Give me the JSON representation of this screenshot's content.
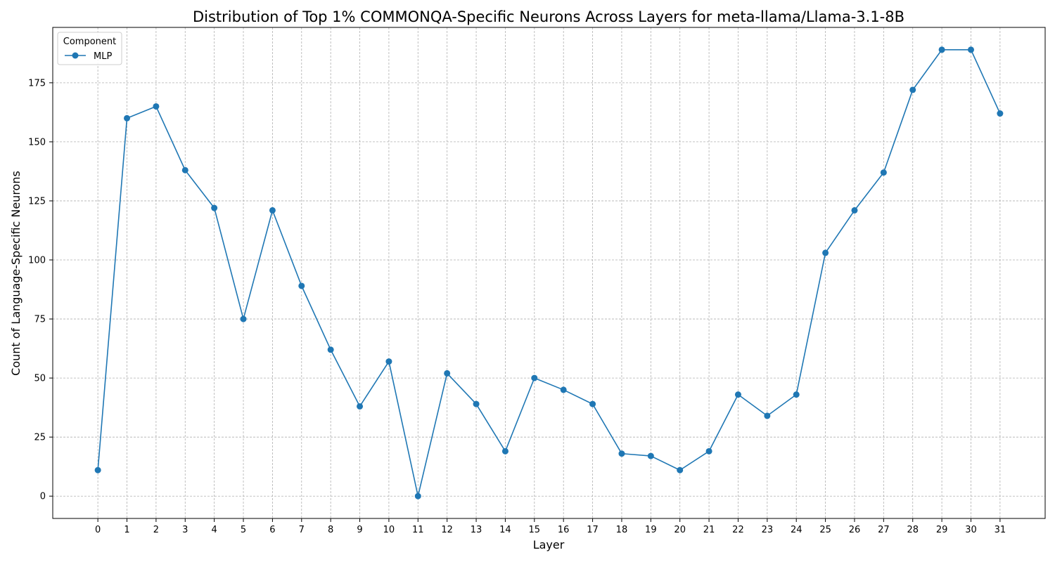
{
  "chart_data": {
    "type": "line",
    "title": "Distribution of Top 1% COMMONQA-Specific Neurons Across Layers for meta-llama/Llama-3.1-8B",
    "xlabel": "Layer",
    "ylabel": "Count of Language-Specific Neurons",
    "x": [
      0,
      1,
      2,
      3,
      4,
      5,
      6,
      7,
      8,
      9,
      10,
      11,
      12,
      13,
      14,
      15,
      16,
      17,
      18,
      19,
      20,
      21,
      22,
      23,
      24,
      25,
      26,
      27,
      28,
      29,
      30,
      31
    ],
    "series": [
      {
        "name": "MLP",
        "color": "#1f77b4",
        "marker": "circle",
        "values": [
          11,
          160,
          165,
          138,
          122,
          75,
          121,
          89,
          62,
          38,
          57,
          0,
          52,
          39,
          19,
          50,
          45,
          39,
          18,
          17,
          11,
          19,
          43,
          34,
          43,
          103,
          121,
          137,
          172,
          189,
          189,
          162
        ]
      }
    ],
    "xlim": [
      -1.55,
      32.55
    ],
    "ylim": [
      -9.45,
      198.45
    ],
    "yticks": [
      0,
      25,
      50,
      75,
      100,
      125,
      150,
      175
    ],
    "grid": true,
    "legend": {
      "title": "Component",
      "placement": "top-left"
    }
  }
}
